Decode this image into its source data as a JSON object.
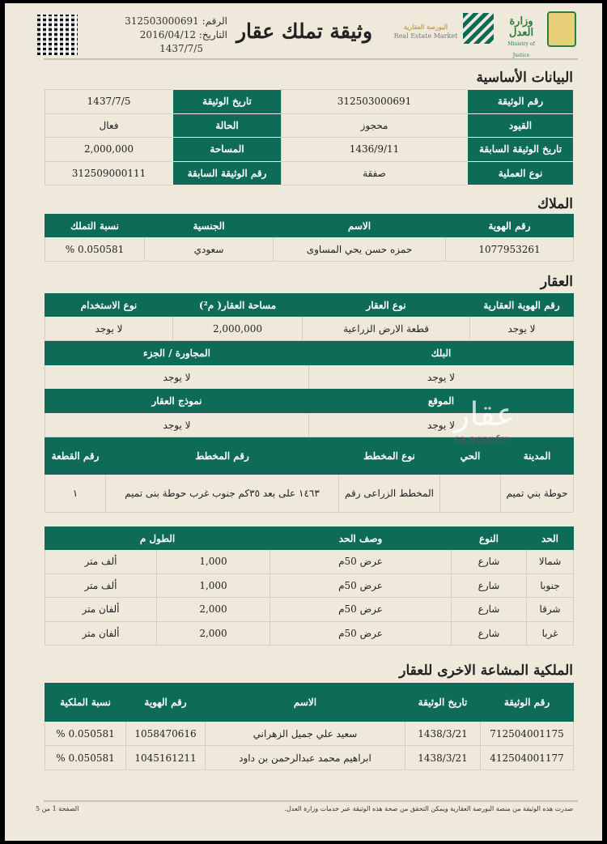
{
  "header": {
    "title": "وثيقة تملك عقار",
    "number_label": "الرقم:",
    "number": "312503000691",
    "date_label": "التاريخ:",
    "date_greg": "2016/04/12",
    "date_hijri": "1437/7/5",
    "logos": {
      "real_estate_ar": "البورصة العقارية",
      "real_estate_en": "Real Estate Market",
      "moj_ar": "وزارة العدل",
      "moj_en": "Ministry of Justice"
    },
    "qr_icon": "qr-code"
  },
  "colors": {
    "accent": "#0d6b57",
    "background": "#efe9dc"
  },
  "basic": {
    "title": "البيانات الأساسية",
    "rows": [
      [
        "رقم الوثيقة",
        "312503000691",
        "تاريخ الوثيقة",
        "1437/7/5"
      ],
      [
        "القيود",
        "محجوز",
        "الحالة",
        "فعال"
      ],
      [
        "تاريخ الوثيقة السابقة",
        "1436/9/11",
        "المساحة",
        "2,000,000"
      ],
      [
        "نوع العملية",
        "صفقة",
        "رقم الوثيقة السابقة",
        "312509000111"
      ]
    ]
  },
  "owners": {
    "title": "الملاك",
    "headers": [
      "رقم الهوية",
      "الاسم",
      "الجنسية",
      "نسبة التملك"
    ],
    "rows": [
      [
        "1077953261",
        "حمزه حسن يحي المساوى",
        "سعودي",
        "0.050581 %"
      ]
    ]
  },
  "property": {
    "title": "العقار",
    "headers": [
      "رقم الهوية العقارية",
      "نوع العقار",
      "مساحة العقار( م²)",
      "نوع الاستخدام"
    ],
    "rows": [
      [
        "لا يوجد",
        "قطعة الارض الزراعية",
        "2,000,000",
        "لا يوجد"
      ]
    ],
    "block_headers": [
      "البلك",
      "المجاورة / الجزء"
    ],
    "block_values": [
      "لا يوجد",
      "لا يوجد"
    ],
    "location_headers": [
      "الموقع",
      "نموذج العقار"
    ],
    "location_values": [
      "لا يوجد",
      "لا يوجد"
    ]
  },
  "plan": {
    "headers": [
      "المدينة",
      "الحي",
      "نوع المخطط",
      "رقم المخطط",
      "رقم القطعة"
    ],
    "rows": [
      [
        "حوطة بني تميم",
        "",
        "المخطط الزراعى رقم",
        "١٤٦٣ على بعد ٣٥كم جنوب غرب حوطة بنى تميم",
        "١"
      ]
    ]
  },
  "boundaries": {
    "headers": [
      "الحد",
      "النوع",
      "وصف الحد",
      "الطول م"
    ],
    "rows": [
      [
        "شمالا",
        "شارع",
        "عرض 50م",
        "1,000",
        "ألف متر"
      ],
      [
        "جنوبا",
        "شارع",
        "عرض 50م",
        "1,000",
        "ألف متر"
      ],
      [
        "شرقا",
        "شارع",
        "عرض 50م",
        "2,000",
        "ألفان متر"
      ],
      [
        "غربا",
        "شارع",
        "عرض 50م",
        "2,000",
        "ألفان متر"
      ]
    ]
  },
  "shared": {
    "title": "الملكية المشاعة الاخرى للعقار",
    "headers": [
      "رقم الوثيقة",
      "تاريخ الوثيقة",
      "الاسم",
      "رقم الهوية",
      "نسبة الملكية"
    ],
    "rows": [
      [
        "712504001175",
        "1438/3/21",
        "سعيد علي جميل الزهراني",
        "1058470616",
        "0.050581 %"
      ],
      [
        "412504001177",
        "1438/3/21",
        "ابراهيم محمد عبدالرحمن بن داود",
        "1045161211",
        "0.050581 %"
      ]
    ]
  },
  "watermark": {
    "text": "عقار",
    "url": "sa.aqar.fm"
  },
  "footer": {
    "note": "صدرت هذه الوثيقة من منصة البورصة العقارية ويمكن التحقق من صحة هذه الوثيقة عبر خدمات وزارة العدل.",
    "page": "الصفحة 1 من 5"
  }
}
